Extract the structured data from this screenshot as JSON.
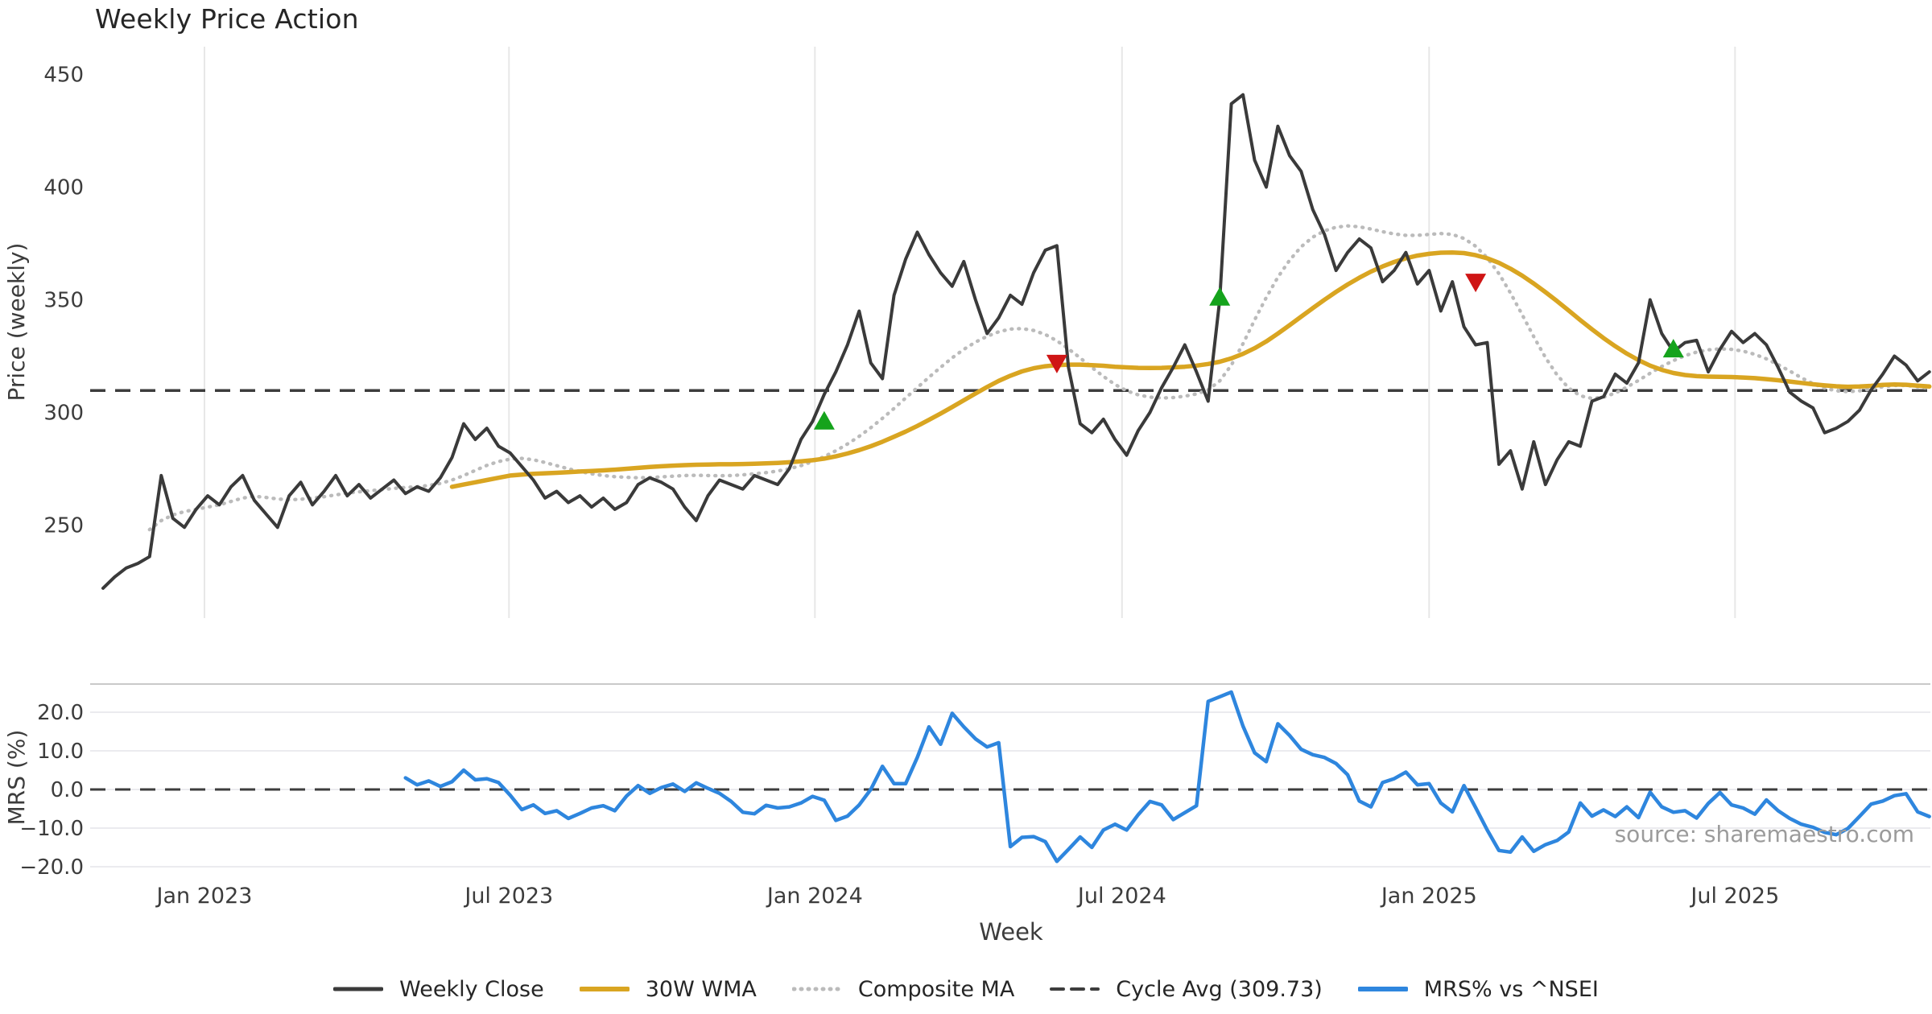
{
  "title": "Weekly Price Action",
  "source": {
    "text": "source: sharemaestro.com"
  },
  "colors": {
    "background": "#ffffff",
    "grid_vertical": "#e7e7e7",
    "grid_horizontal": "#ebebef",
    "panel_border": "#c9c9c9",
    "weekly_close": "#3a3a3a",
    "wma": "#d9a521",
    "composite_ma": "#bbbbbb",
    "cycle_avg": "#3d3d3d",
    "mrs": "#2e86de",
    "buy_marker": "#15a31c",
    "sell_marker": "#cf1515",
    "tick_text": "#3c3c3c",
    "muted_text": "#9b9b9b"
  },
  "legend": {
    "items": [
      {
        "label": "Weekly Close",
        "style": "solid",
        "color": "#3a3a3a",
        "width": 5
      },
      {
        "label": "30W WMA",
        "style": "solid",
        "color": "#d9a521",
        "width": 6
      },
      {
        "label": "Composite MA",
        "style": "dotted",
        "color": "#bbbbbb",
        "width": 5
      },
      {
        "label": "Cycle Avg (309.73)",
        "style": "dashed",
        "color": "#3d3d3d",
        "width": 4
      },
      {
        "label": "MRS% vs ^NSEI",
        "style": "solid",
        "color": "#2e86de",
        "width": 6
      }
    ]
  },
  "x_axis": {
    "label": "Week",
    "ticks": [
      {
        "label": "Jan 2023",
        "week": 8.72
      },
      {
        "label": "Jul 2023",
        "week": 34.9
      },
      {
        "label": "Jan 2024",
        "week": 61.2
      },
      {
        "label": "Jul 2024",
        "week": 87.6
      },
      {
        "label": "Jan 2025",
        "week": 114.0
      },
      {
        "label": "Jul 2025",
        "week": 140.3
      }
    ]
  },
  "chart_data": [
    {
      "type": "line",
      "panel": "price",
      "title": "Weekly Price Action",
      "ylabel": "Price (weekly)",
      "ylim": [
        215,
        455
      ],
      "yticks": [
        {
          "value": 450,
          "label": "450"
        },
        {
          "value": 400,
          "label": "400"
        },
        {
          "value": 350,
          "label": "350"
        },
        {
          "value": 300,
          "label": "300"
        },
        {
          "value": 250,
          "label": "250"
        }
      ],
      "grid": "vertical-only",
      "cycle_avg": {
        "name": "Cycle Avg (309.73)",
        "value": 309.73
      },
      "series": [
        {
          "name": "Weekly Close",
          "start_week": 0,
          "values": [
            222,
            227,
            231,
            233,
            236,
            272,
            253,
            249,
            257,
            263,
            259,
            267,
            272,
            261,
            255,
            249,
            263,
            269,
            259,
            265,
            272,
            263,
            268,
            262,
            266,
            270,
            264,
            267,
            265,
            271,
            280,
            295,
            288,
            293,
            285,
            282,
            276,
            270,
            262,
            265,
            260,
            263,
            258,
            262,
            257,
            260,
            268,
            271,
            269,
            266,
            258,
            252,
            263,
            270,
            268,
            266,
            272,
            270,
            268,
            275,
            288,
            296,
            308,
            318,
            330,
            345,
            322,
            315,
            352,
            368,
            380,
            370,
            362,
            356,
            367,
            350,
            335,
            342,
            352,
            348,
            362,
            372,
            374,
            320,
            295,
            291,
            297,
            288,
            281,
            292,
            300,
            311,
            320,
            330,
            318,
            305,
            350,
            437,
            441,
            412,
            400,
            427,
            414,
            407,
            390,
            379,
            363,
            371,
            377,
            373,
            358,
            363,
            371,
            357,
            363,
            345,
            358,
            338,
            330,
            331,
            277,
            283,
            266,
            287,
            268,
            279,
            287,
            285,
            305,
            307,
            317,
            313,
            322,
            350,
            335,
            327,
            331,
            332,
            318,
            328,
            336,
            331,
            335,
            330,
            320,
            309,
            305,
            302,
            291,
            293,
            296,
            301,
            310,
            317,
            325,
            321,
            314,
            318
          ]
        },
        {
          "name": "30W WMA",
          "start_week": 30,
          "values": [
            267,
            268,
            269,
            270,
            271,
            272,
            272.4,
            272.8,
            273,
            273.2,
            273.5,
            273.8,
            274,
            274.3,
            274.6,
            275,
            275.4,
            275.8,
            276.1,
            276.4,
            276.6,
            276.8,
            276.9,
            277,
            277,
            277.1,
            277.2,
            277.4,
            277.6,
            277.9,
            278.3,
            278.8,
            279.5,
            280.5,
            281.8,
            283.3,
            285,
            287,
            289.2,
            291.5,
            294,
            296.7,
            299.5,
            302.4,
            305.4,
            308.4,
            311.3,
            314,
            316.3,
            318.2,
            319.6,
            320.5,
            321,
            321.2,
            321.2,
            321,
            320.7,
            320.3,
            320,
            319.8,
            319.7,
            319.8,
            320,
            320.3,
            320.8,
            321.5,
            322.5,
            324,
            326,
            328.5,
            331.5,
            335,
            338.7,
            342.5,
            346.3,
            350,
            353.5,
            356.8,
            359.8,
            362.5,
            364.8,
            366.8,
            368.4,
            369.6,
            370.4,
            370.9,
            371,
            370.7,
            369.8,
            368.4,
            366.4,
            363.8,
            360.7,
            357.2,
            353.4,
            349.4,
            345.2,
            341,
            336.9,
            333,
            329.4,
            326.1,
            323.2,
            320.8,
            318.9,
            317.5,
            316.6,
            316.1,
            315.9,
            315.8,
            315.7,
            315.5,
            315.2,
            314.8,
            314.3,
            313.7,
            313.1,
            312.5,
            312,
            311.6,
            311.4,
            311.5,
            311.8,
            312.2,
            312.4,
            312.3,
            311.9,
            311.5
          ]
        },
        {
          "name": "Composite MA",
          "start_week": 4,
          "values": [
            248,
            252,
            254.5,
            256,
            257,
            258,
            259,
            260.5,
            262,
            262.8,
            262.3,
            261.6,
            261.2,
            261.5,
            262,
            262.6,
            263.4,
            264.2,
            264.8,
            265.3,
            265.8,
            266.3,
            266.7,
            267,
            267.6,
            268.5,
            270,
            272,
            274.3,
            276.5,
            278.2,
            279.3,
            279.6,
            279,
            277.8,
            276.4,
            275,
            273.8,
            272.8,
            272,
            271.5,
            271.2,
            271,
            271.1,
            271.4,
            271.7,
            272,
            272.1,
            272,
            271.9,
            272,
            272.3,
            272.8,
            273.3,
            274,
            275,
            276.4,
            278.2,
            280.4,
            283,
            286,
            289.4,
            293.2,
            297.4,
            301.8,
            306.4,
            311,
            315.6,
            320,
            324.2,
            328,
            331.2,
            333.8,
            335.8,
            337,
            337.2,
            336.4,
            334.6,
            331.8,
            328.2,
            324.2,
            320,
            316,
            312.4,
            309.6,
            307.8,
            306.8,
            306.4,
            306.6,
            307.2,
            308.2,
            310,
            314,
            321,
            330.5,
            341,
            351,
            360,
            367.5,
            373.5,
            377.8,
            380.6,
            382.2,
            382.8,
            382.4,
            381.4,
            380.2,
            379.2,
            378.6,
            378.6,
            379,
            379.4,
            379,
            377.2,
            373.8,
            368.6,
            361.6,
            353,
            343.4,
            333.6,
            324.4,
            316.6,
            310.8,
            307.4,
            306.2,
            306.8,
            308.6,
            311.2,
            314.2,
            317.4,
            320.4,
            323,
            325.2,
            326.8,
            327.8,
            328.2,
            328,
            327.2,
            325.8,
            323.8,
            321.2,
            318.4,
            315.4,
            312.8,
            310.8,
            309.6,
            309.2,
            309.6,
            310.4,
            311.4,
            312,
            312,
            311.4,
            310.6
          ]
        }
      ],
      "markers": [
        {
          "signal": "buy",
          "week": 62,
          "price": 296
        },
        {
          "signal": "sell",
          "week": 82,
          "price": 322
        },
        {
          "signal": "buy",
          "week": 96,
          "price": 351
        },
        {
          "signal": "sell",
          "week": 118,
          "price": 358
        },
        {
          "signal": "buy",
          "week": 135,
          "price": 328
        }
      ]
    },
    {
      "type": "line",
      "panel": "mrs",
      "ylabel": "MRS (%)",
      "ylim": [
        -23,
        27
      ],
      "yticks": [
        {
          "value": 20,
          "label": "20.0"
        },
        {
          "value": 10,
          "label": "10.0"
        },
        {
          "value": 0,
          "label": "0.0"
        },
        {
          "value": -10,
          "label": "−10.0"
        },
        {
          "value": -20,
          "label": "−20.0"
        }
      ],
      "grid": "horizontal-only",
      "zero_line": 0,
      "series": [
        {
          "name": "MRS% vs ^NSEI",
          "start_week": 26,
          "values": [
            3,
            1.2,
            2.2,
            0.8,
            2,
            5,
            2.5,
            2.8,
            1.8,
            -1.5,
            -5.2,
            -4,
            -6.2,
            -5.5,
            -7.5,
            -6.2,
            -4.8,
            -4.2,
            -5.5,
            -1.7,
            1,
            -1,
            0.5,
            1.4,
            -0.5,
            1.7,
            0.3,
            -1,
            -3.1,
            -5.9,
            -6.3,
            -4.1,
            -4.8,
            -4.5,
            -3.5,
            -1.8,
            -2.8,
            -8,
            -6.9,
            -4,
            0,
            6,
            1.5,
            1.5,
            8.3,
            16.2,
            11.7,
            19.7,
            16.2,
            13.1,
            11,
            12.1,
            -14.8,
            -12.4,
            -12.2,
            -13.5,
            -18.6,
            -15.5,
            -12.3,
            -15,
            -10.5,
            -9,
            -10.5,
            -6.5,
            -3.1,
            -4,
            -7.8,
            -6,
            -4.2,
            22.8,
            24,
            25.2,
            16.4,
            9.5,
            7.2,
            17,
            14,
            10.4,
            9,
            8.3,
            6.7,
            3.8,
            -3,
            -4.5,
            1.8,
            2.8,
            4.5,
            1.2,
            1.5,
            -3.5,
            -5.8,
            1,
            -4.7,
            -10.5,
            -15.8,
            -16.2,
            -12.3,
            -16,
            -14.3,
            -13.2,
            -11,
            -3.5,
            -6.9,
            -5.3,
            -7,
            -4.5,
            -7.3,
            -0.7,
            -4.5,
            -5.9,
            -5.5,
            -7.4,
            -3.6,
            -0.8,
            -4,
            -4.8,
            -6.4,
            -2.7,
            -5.5,
            -7.5,
            -9,
            -9.8,
            -11.1,
            -11.7,
            -10.1,
            -7,
            -3.8,
            -3,
            -1.6,
            -1.1,
            -5.8,
            -7
          ]
        }
      ]
    }
  ]
}
